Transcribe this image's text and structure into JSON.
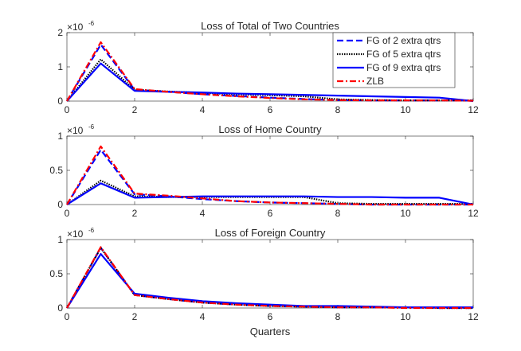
{
  "chart_data": [
    {
      "type": "line",
      "title": "Loss of Total of Two Countries",
      "xlabel": "",
      "ylabel": "",
      "exponent_label": "×10",
      "exponent": "-6",
      "xlim": [
        0,
        12
      ],
      "ylim": [
        0,
        2
      ],
      "xticks": [
        0,
        2,
        4,
        6,
        8,
        10,
        12
      ],
      "yticks": [
        0,
        1,
        2
      ],
      "ytick_labels": [
        "0",
        "1",
        "2"
      ],
      "grid": false,
      "legend": "top-right",
      "x": [
        0,
        1,
        2,
        3,
        4,
        5,
        6,
        7,
        8,
        9,
        10,
        11,
        12
      ],
      "series": [
        {
          "name": "FG of 2 extra qtrs",
          "color": "#0000ff",
          "style": "dashed",
          "values": [
            0,
            1.65,
            0.33,
            0.27,
            0.2,
            0.15,
            0.1,
            0.06,
            0.03,
            0.02,
            0.02,
            0.02,
            0.02
          ]
        },
        {
          "name": "FG of 5 extra qtrs",
          "color": "#000000",
          "style": "dotted",
          "values": [
            0,
            1.22,
            0.33,
            0.28,
            0.24,
            0.2,
            0.17,
            0.14,
            0.05,
            0.03,
            0.02,
            0.02,
            0.02
          ]
        },
        {
          "name": "FG of 9 extra qtrs",
          "color": "#0000ff",
          "style": "solid",
          "values": [
            0,
            1.1,
            0.3,
            0.27,
            0.25,
            0.22,
            0.2,
            0.18,
            0.16,
            0.14,
            0.12,
            0.1,
            0.0
          ]
        },
        {
          "name": "ZLB",
          "color": "#ff0000",
          "style": "dashdot",
          "values": [
            0,
            1.72,
            0.35,
            0.27,
            0.2,
            0.14,
            0.09,
            0.05,
            0.03,
            0.02,
            0.02,
            0.02,
            0.01
          ]
        }
      ]
    },
    {
      "type": "line",
      "title": "Loss of Home Country",
      "xlabel": "",
      "ylabel": "",
      "exponent_label": "×10",
      "exponent": "-6",
      "xlim": [
        0,
        12
      ],
      "ylim": [
        0,
        1
      ],
      "xticks": [
        0,
        2,
        4,
        6,
        8,
        10,
        12
      ],
      "yticks": [
        0,
        0.5,
        1
      ],
      "ytick_labels": [
        "0",
        "0.5",
        "1"
      ],
      "grid": false,
      "x": [
        0,
        1,
        2,
        3,
        4,
        5,
        6,
        7,
        8,
        9,
        10,
        11,
        12
      ],
      "series": [
        {
          "color": "#0000ff",
          "style": "dashed",
          "values": [
            0,
            0.8,
            0.15,
            0.12,
            0.08,
            0.05,
            0.03,
            0.02,
            0.01,
            0,
            0,
            0,
            0
          ]
        },
        {
          "color": "#000000",
          "style": "dotted",
          "values": [
            0,
            0.35,
            0.12,
            0.11,
            0.11,
            0.11,
            0.11,
            0.11,
            0.02,
            0.01,
            0.01,
            0.01,
            0.01
          ]
        },
        {
          "color": "#0000ff",
          "style": "solid",
          "values": [
            0,
            0.31,
            0.1,
            0.11,
            0.12,
            0.12,
            0.12,
            0.12,
            0.11,
            0.11,
            0.1,
            0.1,
            0
          ]
        },
        {
          "color": "#ff0000",
          "style": "dashdot",
          "values": [
            0,
            0.85,
            0.16,
            0.13,
            0.09,
            0.05,
            0.03,
            0.02,
            0.01,
            0,
            0,
            0,
            0
          ]
        }
      ]
    },
    {
      "type": "line",
      "title": "Loss of Foreign Country",
      "xlabel": "Quarters",
      "ylabel": "",
      "exponent_label": "×10",
      "exponent": "-6",
      "xlim": [
        0,
        12
      ],
      "ylim": [
        0,
        1
      ],
      "xticks": [
        0,
        2,
        4,
        6,
        8,
        10,
        12
      ],
      "yticks": [
        0,
        0.5,
        1
      ],
      "ytick_labels": [
        "0",
        "0.5",
        "1"
      ],
      "grid": false,
      "x": [
        0,
        1,
        2,
        3,
        4,
        5,
        6,
        7,
        8,
        9,
        10,
        11,
        12
      ],
      "series": [
        {
          "color": "#0000ff",
          "style": "dashed",
          "values": [
            0,
            0.88,
            0.19,
            0.13,
            0.08,
            0.05,
            0.03,
            0.02,
            0.01,
            0.01,
            0.01,
            0,
            0
          ]
        },
        {
          "color": "#000000",
          "style": "dotted",
          "values": [
            0,
            0.88,
            0.19,
            0.13,
            0.08,
            0.05,
            0.03,
            0.02,
            0.01,
            0.01,
            0.01,
            0,
            0
          ]
        },
        {
          "color": "#0000ff",
          "style": "solid",
          "values": [
            0,
            0.79,
            0.21,
            0.15,
            0.1,
            0.07,
            0.05,
            0.03,
            0.03,
            0.02,
            0.01,
            0.01,
            0.01
          ]
        },
        {
          "color": "#ff0000",
          "style": "dashdot",
          "values": [
            0,
            0.89,
            0.19,
            0.13,
            0.08,
            0.05,
            0.03,
            0.02,
            0.01,
            0.01,
            0,
            0,
            0
          ]
        }
      ]
    }
  ]
}
